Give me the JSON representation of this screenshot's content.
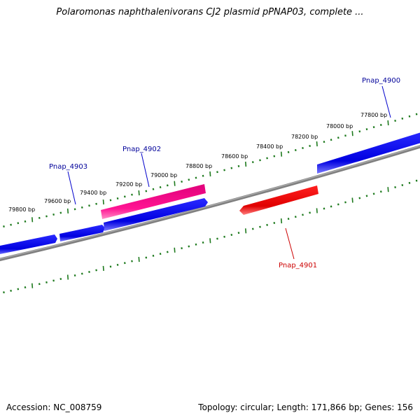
{
  "title": "Polaromonas naphthalenivorans CJ2 plasmid pPNAP03, complete ...",
  "footer": {
    "accession": "Accession: NC_008759",
    "summary": "Topology: circular; Length: 171,866 bp; Genes: 156"
  },
  "colors": {
    "backbone": "#808080",
    "ruler_ticks": "#1e7a1e",
    "forward_gene": "#0000ff",
    "reverse_gene": "#ff0000",
    "highlight_gene": "#ff1493",
    "forward_label": "#000099",
    "reverse_label": "#cc0000"
  },
  "ruler_labels": [
    "77800 bp",
    "78000 bp",
    "78200 bp",
    "78400 bp",
    "78600 bp",
    "78800 bp",
    "79000 bp",
    "79200 bp",
    "79400 bp",
    "79600 bp",
    "79800 bp"
  ],
  "gene_labels": [
    "Pnap_4900",
    "Pnap_4901",
    "Pnap_4902",
    "Pnap_4903"
  ]
}
